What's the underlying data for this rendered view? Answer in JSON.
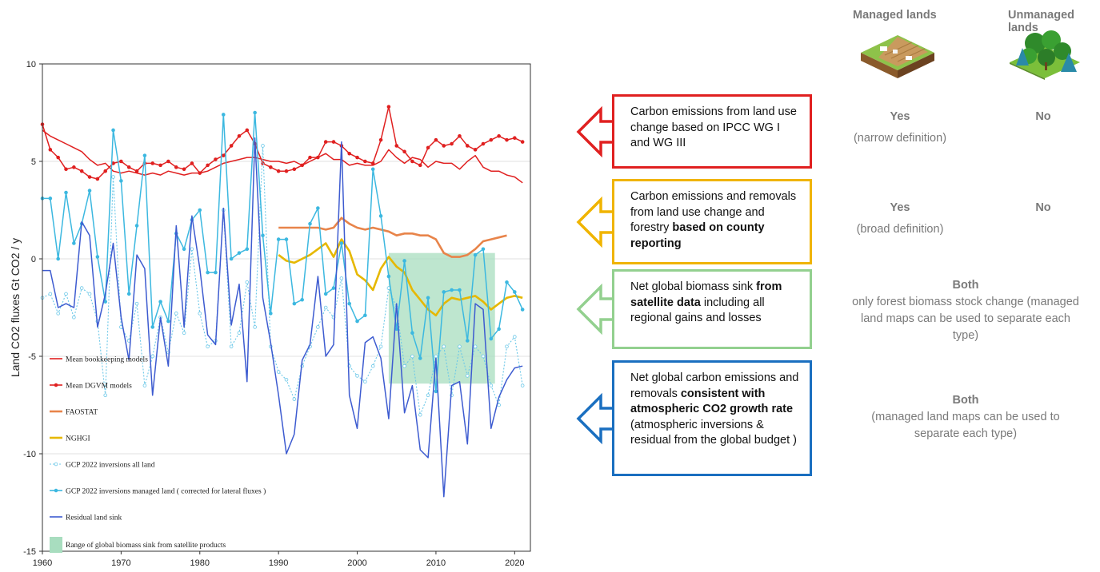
{
  "chart_data": {
    "type": "line",
    "ylabel": "Land CO2 fluxes   Gt CO2 / y",
    "xlim": [
      1960,
      2022
    ],
    "ylim": [
      -15,
      10
    ],
    "x_ticks": [
      "1960",
      "1970",
      "1980",
      "1990",
      "2000",
      "2010",
      "2020"
    ],
    "y_ticks": [
      "10",
      "5",
      "0",
      "-5",
      "-10",
      "-15"
    ],
    "shaded_range": {
      "name": "Range of global biomass sink from  satellite products",
      "x": [
        2004,
        2017.5
      ],
      "y": [
        -6.4,
        0.3
      ],
      "color": "#a8ddbf"
    },
    "series": [
      {
        "name": "Mean  bookkeeping models",
        "color": "#e02020",
        "style": "solid",
        "marker": false,
        "x": [
          1960,
          1961,
          1962,
          1963,
          1964,
          1965,
          1966,
          1967,
          1968,
          1969,
          1970,
          1971,
          1972,
          1973,
          1974,
          1975,
          1976,
          1977,
          1978,
          1979,
          1980,
          1981,
          1982,
          1983,
          1984,
          1985,
          1986,
          1987,
          1988,
          1989,
          1990,
          1991,
          1992,
          1993,
          1994,
          1995,
          1996,
          1997,
          1998,
          1999,
          2000,
          2001,
          2002,
          2003,
          2004,
          2005,
          2006,
          2007,
          2008,
          2009,
          2010,
          2011,
          2012,
          2013,
          2014,
          2015,
          2016,
          2017,
          2018,
          2019,
          2020,
          2021
        ],
        "y": [
          6.6,
          6.3,
          6.1,
          5.9,
          5.7,
          5.5,
          5.1,
          4.8,
          4.9,
          4.5,
          4.4,
          4.5,
          4.4,
          4.3,
          4.4,
          4.3,
          4.5,
          4.4,
          4.3,
          4.4,
          4.4,
          4.5,
          4.7,
          4.9,
          5.0,
          5.1,
          5.2,
          5.2,
          5.1,
          5.0,
          5.0,
          4.9,
          5.0,
          4.8,
          5.0,
          5.2,
          5.4,
          5.1,
          5.1,
          4.8,
          4.9,
          4.8,
          4.8,
          5.0,
          5.6,
          5.2,
          4.9,
          5.2,
          5.1,
          4.7,
          5.0,
          4.9,
          4.9,
          4.6,
          5.0,
          5.3,
          4.7,
          4.5,
          4.5,
          4.3,
          4.2,
          3.9
        ]
      },
      {
        "name": "Mean DGVM models",
        "color": "#e02020",
        "style": "solid",
        "marker": true,
        "x": [
          1960,
          1961,
          1962,
          1963,
          1964,
          1965,
          1966,
          1967,
          1968,
          1969,
          1970,
          1971,
          1972,
          1973,
          1974,
          1975,
          1976,
          1977,
          1978,
          1979,
          1980,
          1981,
          1982,
          1983,
          1984,
          1985,
          1986,
          1987,
          1988,
          1989,
          1990,
          1991,
          1992,
          1993,
          1994,
          1995,
          1996,
          1997,
          1998,
          1999,
          2000,
          2001,
          2002,
          2003,
          2004,
          2005,
          2006,
          2007,
          2008,
          2009,
          2010,
          2011,
          2012,
          2013,
          2014,
          2015,
          2016,
          2017,
          2018,
          2019,
          2020,
          2021
        ],
        "y": [
          6.9,
          5.6,
          5.2,
          4.6,
          4.7,
          4.5,
          4.2,
          4.1,
          4.5,
          4.9,
          5.0,
          4.7,
          4.5,
          4.9,
          4.9,
          4.8,
          5.0,
          4.7,
          4.6,
          4.9,
          4.4,
          4.8,
          5.1,
          5.3,
          5.8,
          6.3,
          6.6,
          5.9,
          4.9,
          4.7,
          4.5,
          4.5,
          4.6,
          4.8,
          5.2,
          5.2,
          6.0,
          6.0,
          5.8,
          5.4,
          5.2,
          5.0,
          4.9,
          6.1,
          7.8,
          5.8,
          5.5,
          5.0,
          4.8,
          5.7,
          6.1,
          5.8,
          5.9,
          6.3,
          5.8,
          5.6,
          5.9,
          6.1,
          6.3,
          6.1,
          6.2,
          6.0
        ]
      },
      {
        "name": "FAOSTAT",
        "color": "#e8844a",
        "style": "solid",
        "marker": false,
        "x": [
          1990,
          1991,
          1992,
          1993,
          1994,
          1995,
          1996,
          1997,
          1998,
          1999,
          2000,
          2001,
          2002,
          2003,
          2004,
          2005,
          2006,
          2007,
          2008,
          2009,
          2010,
          2011,
          2012,
          2013,
          2014,
          2015,
          2016,
          2017,
          2018,
          2019
        ],
        "y": [
          1.6,
          1.6,
          1.6,
          1.6,
          1.6,
          1.6,
          1.5,
          1.6,
          2.1,
          1.8,
          1.6,
          1.5,
          1.6,
          1.5,
          1.4,
          1.2,
          1.3,
          1.3,
          1.2,
          1.2,
          1.0,
          0.3,
          0.1,
          0.1,
          0.2,
          0.5,
          0.9,
          1.0,
          1.1,
          1.2
        ]
      },
      {
        "name": "NGHGI",
        "color": "#e6b800",
        "style": "solid",
        "marker": false,
        "x": [
          1990,
          1991,
          1992,
          1993,
          1994,
          1995,
          1996,
          1997,
          1998,
          1999,
          2000,
          2001,
          2002,
          2003,
          2004,
          2005,
          2006,
          2007,
          2008,
          2009,
          2010,
          2011,
          2012,
          2013,
          2014,
          2015,
          2016,
          2017,
          2018,
          2019,
          2020,
          2021
        ],
        "y": [
          0.2,
          -0.1,
          -0.2,
          0.0,
          0.2,
          0.5,
          0.8,
          0.1,
          1.0,
          0.4,
          -0.8,
          -1.1,
          -1.6,
          -0.5,
          0.1,
          -0.4,
          -0.7,
          -1.6,
          -2.1,
          -2.6,
          -2.9,
          -2.3,
          -2.0,
          -2.1,
          -2.0,
          -1.9,
          -2.2,
          -2.6,
          -2.3,
          -2.0,
          -1.9,
          -2.0
        ]
      },
      {
        "name": "GCP 2022 inversions all land",
        "color": "#6cc8e8",
        "style": "dotted",
        "marker": true,
        "x": [
          1960,
          1961,
          1962,
          1963,
          1964,
          1965,
          1966,
          1967,
          1968,
          1969,
          1970,
          1971,
          1972,
          1973,
          1974,
          1975,
          1976,
          1977,
          1978,
          1979,
          1980,
          1981,
          1982,
          1983,
          1984,
          1985,
          1986,
          1987,
          1988,
          1989,
          1990,
          1991,
          1992,
          1993,
          1994,
          1995,
          1996,
          1997,
          1998,
          1999,
          2000,
          2001,
          2002,
          2003,
          2004,
          2005,
          2006,
          2007,
          2008,
          2009,
          2010,
          2011,
          2012,
          2013,
          2014,
          2015,
          2016,
          2017,
          2018,
          2019,
          2020,
          2021
        ],
        "y": [
          -2.0,
          -1.8,
          -2.8,
          -1.8,
          -3.0,
          -1.5,
          -1.8,
          -3.2,
          -7.0,
          4.2,
          -3.5,
          -4.2,
          -2.3,
          -6.5,
          -5.0,
          -3.0,
          -4.8,
          -2.8,
          -3.8,
          0.5,
          -2.8,
          -4.5,
          -4.2,
          2.5,
          -4.5,
          -3.8,
          -1.2,
          -3.5,
          5.8,
          -4.5,
          -5.8,
          -6.2,
          -7.2,
          -5.5,
          -4.5,
          -3.5,
          -2.5,
          -3.0,
          -1.0,
          -5.5,
          -6.0,
          -6.3,
          -5.5,
          -4.5,
          -1.5,
          -2.5,
          -5.5,
          -5.0,
          -8.0,
          -7.0,
          -5.0,
          -4.5,
          -7.0,
          -4.5,
          -6.0,
          -4.5,
          -5.0,
          -6.5,
          -7.5,
          -4.5,
          -4.0,
          -6.5
        ]
      },
      {
        "name": "GCP 2022 inversions managed land ( corrected for  lateral fluxes )",
        "color": "#3cb8e0",
        "style": "solid",
        "marker": true,
        "x": [
          1960,
          1961,
          1962,
          1963,
          1964,
          1965,
          1966,
          1967,
          1968,
          1969,
          1970,
          1971,
          1972,
          1973,
          1974,
          1975,
          1976,
          1977,
          1978,
          1979,
          1980,
          1981,
          1982,
          1983,
          1984,
          1985,
          1986,
          1987,
          1988,
          1989,
          1990,
          1991,
          1992,
          1993,
          1994,
          1995,
          1996,
          1997,
          1998,
          1999,
          2000,
          2001,
          2002,
          2003,
          2004,
          2005,
          2006,
          2007,
          2008,
          2009,
          2010,
          2011,
          2012,
          2013,
          2014,
          2015,
          2016,
          2017,
          2018,
          2019,
          2020,
          2021
        ],
        "y": [
          3.1,
          3.1,
          0.0,
          3.4,
          0.8,
          1.8,
          3.5,
          0.1,
          -2.2,
          6.6,
          4.0,
          -1.8,
          1.7,
          5.3,
          -3.5,
          -2.2,
          -3.2,
          1.3,
          0.5,
          2.0,
          2.5,
          -0.7,
          -0.7,
          7.4,
          0.0,
          0.3,
          0.5,
          7.5,
          1.2,
          -2.8,
          1.0,
          1.0,
          -2.3,
          -2.1,
          1.8,
          2.6,
          -1.8,
          -1.5,
          0.8,
          -2.3,
          -3.2,
          -2.9,
          4.6,
          2.2,
          -0.9,
          -3.6,
          -0.1,
          -3.8,
          -5.1,
          -2.0,
          -6.8,
          -1.7,
          -1.6,
          -1.6,
          -4.2,
          0.2,
          0.5,
          -4.1,
          -3.6,
          -1.2,
          -1.7,
          -2.6
        ]
      },
      {
        "name": "Residual land sink",
        "color": "#3d5bd0",
        "style": "solid",
        "marker": false,
        "x": [
          1960,
          1961,
          1962,
          1963,
          1964,
          1965,
          1966,
          1967,
          1968,
          1969,
          1970,
          1971,
          1972,
          1973,
          1974,
          1975,
          1976,
          1977,
          1978,
          1979,
          1980,
          1981,
          1982,
          1983,
          1984,
          1985,
          1986,
          1987,
          1988,
          1989,
          1990,
          1991,
          1992,
          1993,
          1994,
          1995,
          1996,
          1997,
          1998,
          1999,
          2000,
          2001,
          2002,
          2003,
          2004,
          2005,
          2006,
          2007,
          2008,
          2009,
          2010,
          2011,
          2012,
          2013,
          2014,
          2015,
          2016,
          2017,
          2018,
          2019,
          2020,
          2021
        ],
        "y": [
          -0.6,
          -0.6,
          -2.5,
          -2.3,
          -2.5,
          1.9,
          1.2,
          -3.5,
          -1.8,
          0.8,
          -3.0,
          -5.2,
          0.2,
          -0.5,
          -7.0,
          -3.0,
          -5.5,
          1.7,
          -3.5,
          2.2,
          -0.5,
          -3.9,
          -4.4,
          2.6,
          -3.4,
          -1.3,
          -6.3,
          6.2,
          -2.0,
          -4.3,
          -7.0,
          -10.0,
          -9.0,
          -5.2,
          -4.4,
          -0.9,
          -5.0,
          -4.4,
          6.0,
          -7.0,
          -8.7,
          -4.3,
          -4.0,
          -5.1,
          -8.2,
          -2.3,
          -7.9,
          -6.5,
          -9.8,
          -10.2,
          -5.1,
          -12.2,
          -6.5,
          -6.3,
          -9.5,
          -2.3,
          -2.6,
          -8.7,
          -7.1,
          -6.2,
          -5.6,
          -5.5
        ]
      }
    ]
  },
  "columns": {
    "managed": "Managed lands",
    "unmanaged": "Unmanaged lands"
  },
  "icons": {
    "managed": "managed-land-icon",
    "unmanaged": "forest-icon"
  },
  "rows": [
    {
      "color": "#e02020",
      "segments": [
        {
          "t": "Carbon emissions from land use change based on IPCC WG I and WG III",
          "b": false
        }
      ],
      "managed_main": "Yes",
      "managed_sub": "(narrow definition)",
      "unmanaged": "No"
    },
    {
      "color": "#f0b400",
      "segments": [
        {
          "t": "Carbon emissions and removals from land use change and forestry ",
          "b": false
        },
        {
          "t": "based on county reporting",
          "b": true
        }
      ],
      "managed_main": "Yes",
      "managed_sub": "(broad definition)",
      "unmanaged": "No"
    },
    {
      "color": "#93d08f",
      "segments": [
        {
          "t": "Net global biomass sink ",
          "b": false
        },
        {
          "t": "from satellite data",
          "b": true
        },
        {
          "t": " including all regional gains and losses",
          "b": false
        }
      ],
      "both_main": "Both",
      "both_sub": "only forest biomass stock change (managed land maps can be used to separate each type)"
    },
    {
      "color": "#1a6fc0",
      "segments": [
        {
          "t": "Net global carbon emissions and removals ",
          "b": false
        },
        {
          "t": "consistent with atmospheric CO2 growth rate",
          "b": true
        },
        {
          "t": " (atmospheric inversions & residual from the global budget )",
          "b": false
        }
      ],
      "both_main": "Both",
      "both_sub": "(managed land maps can be used to separate each type)"
    }
  ]
}
